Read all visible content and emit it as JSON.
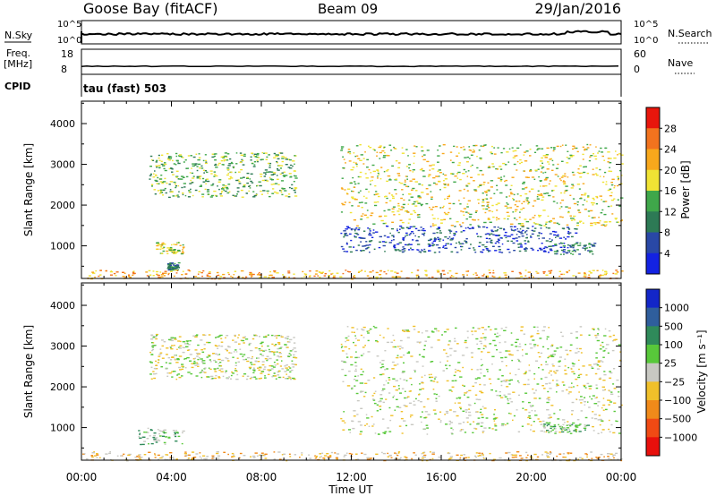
{
  "header": {
    "station": "Goose Bay (fitACF)",
    "beam": "Beam 09",
    "date": "29/Jan/2016"
  },
  "status_panels": {
    "nsky_label": "N.Sky",
    "nsky_ticks": [
      "10^5",
      "10^0"
    ],
    "nsearch_label": "N.Search",
    "nsearch_ticks": [
      "10^5",
      "10^0"
    ],
    "freq_label": "Freq.",
    "freq_unit": "[MHz]",
    "freq_ticks": [
      "18",
      "8"
    ],
    "nave_label": "Nave",
    "nave_ticks": [
      "60",
      "0"
    ],
    "cpid_label": "CPID",
    "cpid_value": "tau (fast) 503"
  },
  "chart_data": [
    {
      "type": "heatmap",
      "name": "Power",
      "ylabel": "Slant Range [km]",
      "ylim": [
        200,
        4550
      ],
      "yticks": [
        1000,
        2000,
        3000,
        4000
      ],
      "xlim_hours": [
        0,
        24
      ],
      "xtick_labels": [
        "00:00",
        "04:00",
        "08:00",
        "12:00",
        "16:00",
        "20:00",
        "00:00"
      ],
      "colorbar": {
        "label": "Power [dB]",
        "ticks": [
          "28",
          "24",
          "20",
          "16",
          "12",
          "8",
          "4"
        ],
        "colors": [
          "#e8160c",
          "#f2731e",
          "#f8a81c",
          "#f0e334",
          "#3fa74a",
          "#2d7a55",
          "#2948a6",
          "#1322e2"
        ]
      },
      "regions": [
        {
          "x0": 3.0,
          "x1": 9.5,
          "r0": 2200,
          "r1": 3300,
          "level": 4
        },
        {
          "x0": 3.3,
          "x1": 4.5,
          "r0": 800,
          "r1": 1100,
          "level": 3
        },
        {
          "x0": 3.8,
          "x1": 4.3,
          "r0": 420,
          "r1": 600,
          "level": 5
        },
        {
          "x0": 11.5,
          "x1": 22.0,
          "r0": 850,
          "r1": 1500,
          "level": 6
        },
        {
          "x0": 11.5,
          "x1": 24.0,
          "r0": 1500,
          "r1": 3500,
          "level": 3
        },
        {
          "x0": 21.0,
          "x1": 22.8,
          "r0": 800,
          "r1": 1100,
          "level": 5
        },
        {
          "x0": 0.0,
          "x1": 24.0,
          "r0": 200,
          "r1": 420,
          "level": 2
        }
      ]
    },
    {
      "type": "heatmap",
      "name": "Velocity",
      "ylabel": "Slant Range [km]",
      "ylim": [
        200,
        4550
      ],
      "yticks": [
        1000,
        2000,
        3000,
        4000
      ],
      "xlim_hours": [
        0,
        24
      ],
      "xtick_labels": [
        "00:00",
        "04:00",
        "08:00",
        "12:00",
        "16:00",
        "20:00",
        "00:00"
      ],
      "xlabel": "Time UT",
      "colorbar": {
        "label": "Velocity [m s⁻¹]",
        "ticks": [
          "1000",
          "500",
          "100",
          "25",
          "−25",
          "−100",
          "−500",
          "−1000"
        ],
        "colors": [
          "#1326c8",
          "#2f5e9c",
          "#2f8a5a",
          "#58c83a",
          "#c8c8c2",
          "#f0c02a",
          "#f08a1a",
          "#f04a14",
          "#e8100c"
        ]
      },
      "regions": [
        {
          "x0": 3.0,
          "x1": 9.5,
          "r0": 2200,
          "r1": 3300,
          "level": 4
        },
        {
          "x0": 11.5,
          "x1": 24.0,
          "r0": 850,
          "r1": 3500,
          "level": 4
        },
        {
          "x0": 2.5,
          "x1": 4.5,
          "r0": 600,
          "r1": 1000,
          "level": 3
        },
        {
          "x0": 20.5,
          "x1": 22.5,
          "r0": 900,
          "r1": 1100,
          "level": 3
        },
        {
          "x0": 0.0,
          "x1": 24.0,
          "r0": 200,
          "r1": 420,
          "level": 5
        }
      ]
    }
  ]
}
